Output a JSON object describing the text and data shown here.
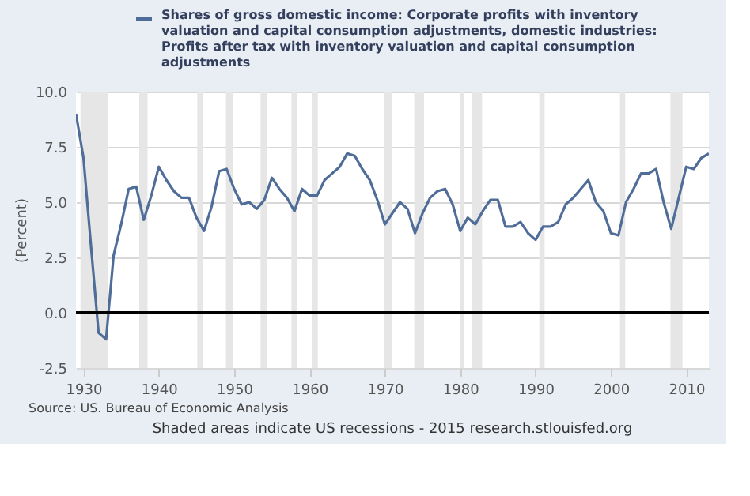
{
  "chart_data": {
    "type": "line",
    "ylabel": "(Percent)",
    "legend": "top",
    "grid": "y",
    "x": [
      1929,
      1930,
      1931,
      1932,
      1933,
      1934,
      1935,
      1936,
      1937,
      1938,
      1939,
      1940,
      1941,
      1942,
      1943,
      1944,
      1945,
      1946,
      1947,
      1948,
      1949,
      1950,
      1951,
      1952,
      1953,
      1954,
      1955,
      1956,
      1957,
      1958,
      1959,
      1960,
      1961,
      1962,
      1963,
      1964,
      1965,
      1966,
      1967,
      1968,
      1969,
      1970,
      1971,
      1972,
      1973,
      1974,
      1975,
      1976,
      1977,
      1978,
      1979,
      1980,
      1981,
      1982,
      1983,
      1984,
      1985,
      1986,
      1987,
      1988,
      1989,
      1990,
      1991,
      1992,
      1993,
      1994,
      1995,
      1996,
      1997,
      1998,
      1999,
      2000,
      2001,
      2002,
      2003,
      2004,
      2005,
      2006,
      2007,
      2008,
      2009,
      2010,
      2011,
      2012,
      2013
    ],
    "series": [
      {
        "name": "Shares of gross domestic income: Corporate profits with inventory valuation and capital consumption adjustments, domestic industries: Profits after tax with inventory valuation and capital consumption adjustments",
        "color": "#4f6d98",
        "values": [
          9.0,
          7.0,
          3.0,
          -0.9,
          -1.2,
          2.6,
          4.0,
          5.6,
          5.7,
          4.2,
          5.3,
          6.6,
          6.0,
          5.5,
          5.2,
          5.2,
          4.3,
          3.7,
          4.8,
          6.4,
          6.5,
          5.6,
          4.9,
          5.0,
          4.7,
          5.1,
          6.1,
          5.6,
          5.2,
          4.6,
          5.6,
          5.3,
          5.3,
          6.0,
          6.3,
          6.6,
          7.2,
          7.1,
          6.5,
          6.0,
          5.1,
          4.0,
          4.5,
          5.0,
          4.7,
          3.6,
          4.5,
          5.2,
          5.5,
          5.6,
          4.9,
          3.7,
          4.3,
          4.0,
          4.6,
          5.1,
          5.1,
          3.9,
          3.9,
          4.1,
          3.6,
          3.3,
          3.9,
          3.9,
          4.1,
          4.9,
          5.2,
          5.6,
          6.0,
          5.0,
          4.6,
          3.6,
          3.5,
          5.0,
          5.6,
          6.3,
          6.3,
          6.5,
          5.0,
          3.8,
          5.2,
          6.6,
          6.5,
          7.0,
          7.2
        ]
      }
    ],
    "xlim": [
      1929,
      2013
    ],
    "xticks": [
      1930,
      1940,
      1950,
      1960,
      1970,
      1980,
      1990,
      2000,
      2010
    ],
    "ylim": [
      -2.5,
      10
    ],
    "yticks": [
      {
        "value": -2.5,
        "label": "-2.5"
      },
      {
        "value": 0,
        "label": "0.0"
      },
      {
        "value": 2.5,
        "label": "2.5"
      },
      {
        "value": 5,
        "label": "5.0"
      },
      {
        "value": 7.5,
        "label": "7.5"
      },
      {
        "value": 10,
        "label": "10.0"
      }
    ],
    "ref_lines": [
      {
        "axis": "y",
        "value": 0,
        "color": "#000000"
      }
    ],
    "bands": [
      {
        "axis": "x",
        "from": 1929.6,
        "to": 1933.2,
        "color": "#e6e6e6"
      },
      {
        "axis": "x",
        "from": 1937.4,
        "to": 1938.5,
        "color": "#e6e6e6"
      },
      {
        "axis": "x",
        "from": 1945.1,
        "to": 1945.8,
        "color": "#e6e6e6"
      },
      {
        "axis": "x",
        "from": 1948.9,
        "to": 1949.8,
        "color": "#e6e6e6"
      },
      {
        "axis": "x",
        "from": 1953.5,
        "to": 1954.4,
        "color": "#e6e6e6"
      },
      {
        "axis": "x",
        "from": 1957.6,
        "to": 1958.3,
        "color": "#e6e6e6"
      },
      {
        "axis": "x",
        "from": 1960.3,
        "to": 1961.1,
        "color": "#e6e6e6"
      },
      {
        "axis": "x",
        "from": 1969.9,
        "to": 1970.9,
        "color": "#e6e6e6"
      },
      {
        "axis": "x",
        "from": 1973.9,
        "to": 1975.2,
        "color": "#e6e6e6"
      },
      {
        "axis": "x",
        "from": 1980.0,
        "to": 1980.5,
        "color": "#e6e6e6"
      },
      {
        "axis": "x",
        "from": 1981.5,
        "to": 1982.9,
        "color": "#e6e6e6"
      },
      {
        "axis": "x",
        "from": 1990.5,
        "to": 1991.2,
        "color": "#e6e6e6"
      },
      {
        "axis": "x",
        "from": 2001.2,
        "to": 2001.9,
        "color": "#e6e6e6"
      },
      {
        "axis": "x",
        "from": 2007.9,
        "to": 2009.5,
        "color": "#e6e6e6"
      }
    ],
    "annotations": [
      "Source: US. Bureau of Economic Analysis",
      "Shaded areas indicate US recessions - 2015 research.stlouisfed.org"
    ]
  }
}
